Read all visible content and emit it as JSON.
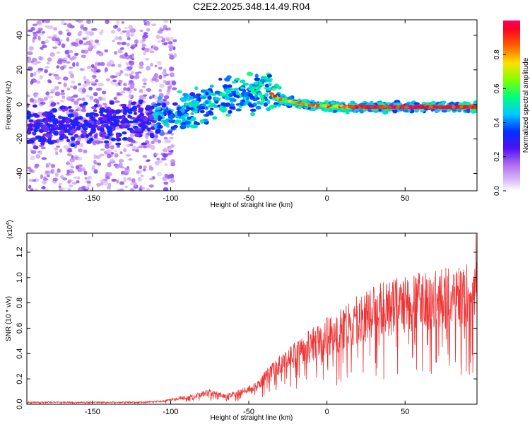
{
  "chart_data": [
    {
      "type": "heatmap",
      "panel": "top",
      "title": "C2E2.2025.348.14.49.R04",
      "xlabel": "Height of straight line (km)",
      "ylabel": "Frequency (Hz)",
      "xlim": [
        -192,
        96
      ],
      "ylim": [
        -50,
        49
      ],
      "xticks": [
        -150,
        -100,
        -50,
        0,
        50
      ],
      "yticks": [
        -40,
        -20,
        0,
        20,
        40
      ],
      "colorbar": {
        "label": "Normalized spectral amplitude",
        "ticks": [
          0.0,
          0.2,
          0.4,
          0.6,
          0.8
        ],
        "range": [
          0,
          1
        ],
        "colors": [
          "#ffffff",
          "#c8a8f0",
          "#7a1ee8",
          "#0010ff",
          "#00c8ff",
          "#00ff60",
          "#d0ff00",
          "#ffa000",
          "#ff1010",
          "#ff0066"
        ]
      },
      "ridge": {
        "x": [
          -192,
          -170,
          -150,
          -130,
          -110,
          -100,
          -90,
          -80,
          -70,
          -60,
          -50,
          -42,
          -38,
          -34,
          -30,
          -20,
          -10,
          0,
          20,
          50,
          96
        ],
        "y": [
          -13,
          -12,
          -11,
          -10,
          -8,
          -6,
          -3,
          0,
          3,
          5,
          6,
          8,
          8,
          5,
          3,
          1,
          -0.5,
          -1,
          -1.5,
          -1.5,
          -1.5
        ]
      }
    },
    {
      "type": "line",
      "panel": "bottom",
      "xlabel": "Height of straight line (km)",
      "ylabel": "SNR (10 * v/v)",
      "yscale_label": "(x10",
      "yscale_exp": "4",
      "yscale_close": ")",
      "xlim": [
        -192,
        96
      ],
      "ylim": [
        0,
        1.35
      ],
      "xticks": [
        -150,
        -100,
        -50,
        0,
        50
      ],
      "yticks": [
        "0.0",
        "0.2",
        "0.4",
        "0.6",
        "0.8",
        "1.0",
        "1.2"
      ],
      "series": [
        {
          "name": "SNR",
          "color": "#ee3333",
          "envelope_x": [
            -192,
            -150,
            -120,
            -105,
            -95,
            -85,
            -75,
            -65,
            -55,
            -45,
            -35,
            -25,
            -15,
            -5,
            5,
            15,
            25,
            35,
            45,
            55,
            65,
            75,
            85,
            90,
            96
          ],
          "envelope_y": [
            0.02,
            0.02,
            0.02,
            0.03,
            0.06,
            0.08,
            0.12,
            0.08,
            0.12,
            0.18,
            0.33,
            0.45,
            0.55,
            0.65,
            0.72,
            0.82,
            0.9,
            0.96,
            1.0,
            1.04,
            1.06,
            1.08,
            1.1,
            1.12,
            1.12
          ],
          "max_value": 1.34
        }
      ]
    }
  ]
}
